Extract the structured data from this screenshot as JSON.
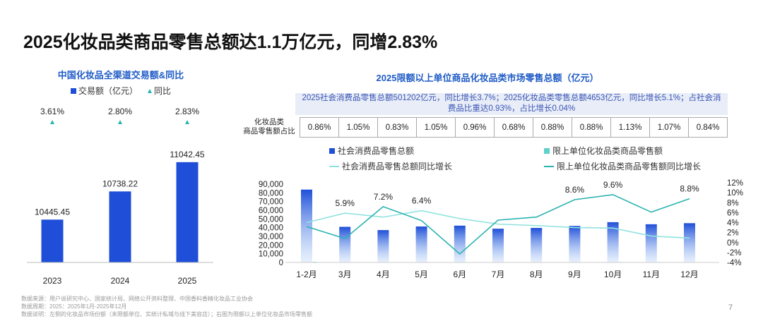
{
  "title": "2025化妆品类商品零售总额达1.1万亿元，同增2.83%",
  "page_number": "7",
  "footer": {
    "lines": [
      "数据来源：用户说研究中心、国家统计局、网络公开资料整理、中国香料香精化妆品工业协会",
      "数据周期：2025：2025年1月-2025年12月",
      "数据说明：左侧的化妆品市场份额（未限额单位、实统计私域与线下美容店）；右图为限额以上单位化妆品市场零售额"
    ]
  },
  "left_chart": {
    "title": "中国化妆品全渠道交易额&同比",
    "legend": {
      "bar": "交易额（亿元）",
      "marker": "同比"
    }
  },
  "right_chart": {
    "title": "2025限额以上单位商品化妆品类市场零售总额（亿元）",
    "note": {
      "line1": "2025社会消费品零售总额501202亿元，同比增长3.7%；2025化妆品类零售总额4653亿元，同比增长5.1%；占社会消",
      "line2": "费品比重达0.93%，占比增长0.04%"
    },
    "share_row_label": {
      "line1": "化妆品类",
      "line2": "商品零售额占比"
    },
    "share_values": [
      "0.86%",
      "1.05%",
      "0.83%",
      "1.05%",
      "0.96%",
      "0.68%",
      "0.88%",
      "0.88%",
      "1.13%",
      "1.07%",
      "0.84%"
    ],
    "legend": {
      "s1": "社会消费品零售总额",
      "s2": "限上单位化妆品类商品零售额",
      "s3": "社会消费品零售总额同比增长",
      "s4": "限上单位化妆品类商品零售额同比增长"
    }
  },
  "colors": {
    "bar_blue": "#1f4fd8",
    "teal": "#2bb3b0",
    "light_teal": "#5fd0cc",
    "title_blue": "#1f5bc6",
    "note_bg": "#e8edf8"
  },
  "chart_data": [
    {
      "type": "bar",
      "categories": [
        "2023",
        "2024",
        "2025"
      ],
      "values": [
        10445.45,
        10738.22,
        11042.45
      ],
      "value_labels": [
        "10445.45",
        "10738.22",
        "11042.45"
      ],
      "growth_labels": [
        "3.61%",
        "2.80%",
        "2.83%"
      ],
      "ylim": [
        10000,
        11100
      ]
    },
    {
      "type": "bar",
      "categories": [
        "1-2月",
        "3月",
        "4月",
        "5月",
        "6月",
        "7月",
        "8月",
        "9月",
        "10月",
        "11月",
        "12月"
      ],
      "series": [
        {
          "name": "社会消费品零售总额",
          "values": [
            83731,
            40940,
            37174,
            41327,
            42287,
            38780,
            39668,
            41971,
            46291,
            43898,
            45136
          ]
        },
        {
          "name": "限上单位化妆品类商品零售额",
          "values": [
            720,
            430,
            310,
            430,
            410,
            265,
            350,
            370,
            520,
            470,
            380
          ]
        },
        {
          "name": "社会消费品零售总额同比增长",
          "values": [
            4.0,
            5.9,
            5.1,
            6.4,
            4.8,
            3.7,
            3.4,
            3.0,
            2.9,
            1.3,
            0.9
          ]
        },
        {
          "name": "限上单位化妆品类商品零售额同比增长",
          "values": [
            3.2,
            0.8,
            7.2,
            4.4,
            -2.3,
            4.5,
            5.1,
            8.6,
            9.6,
            6.1,
            8.8
          ]
        }
      ],
      "data_labels": [
        {
          "index": 1,
          "text": "5.9%"
        },
        {
          "index": 2,
          "text": "7.2%"
        },
        {
          "index": 3,
          "text": "6.4%"
        },
        {
          "index": 7,
          "text": "8.6%"
        },
        {
          "index": 8,
          "text": "9.6%"
        },
        {
          "index": 10,
          "text": "8.8%"
        }
      ],
      "y_left_ticks": [
        "90,000",
        "80,000",
        "70,000",
        "60,000",
        "50,000",
        "40,000",
        "30,000",
        "20,000",
        "10,000",
        "0"
      ],
      "ylim_left": [
        0,
        90000
      ],
      "y_right_ticks": [
        "12%",
        "10%",
        "8%",
        "6%",
        "4%",
        "2%",
        "0%",
        "-2%",
        "-4%"
      ],
      "ylim_right": [
        -4,
        12
      ]
    }
  ]
}
